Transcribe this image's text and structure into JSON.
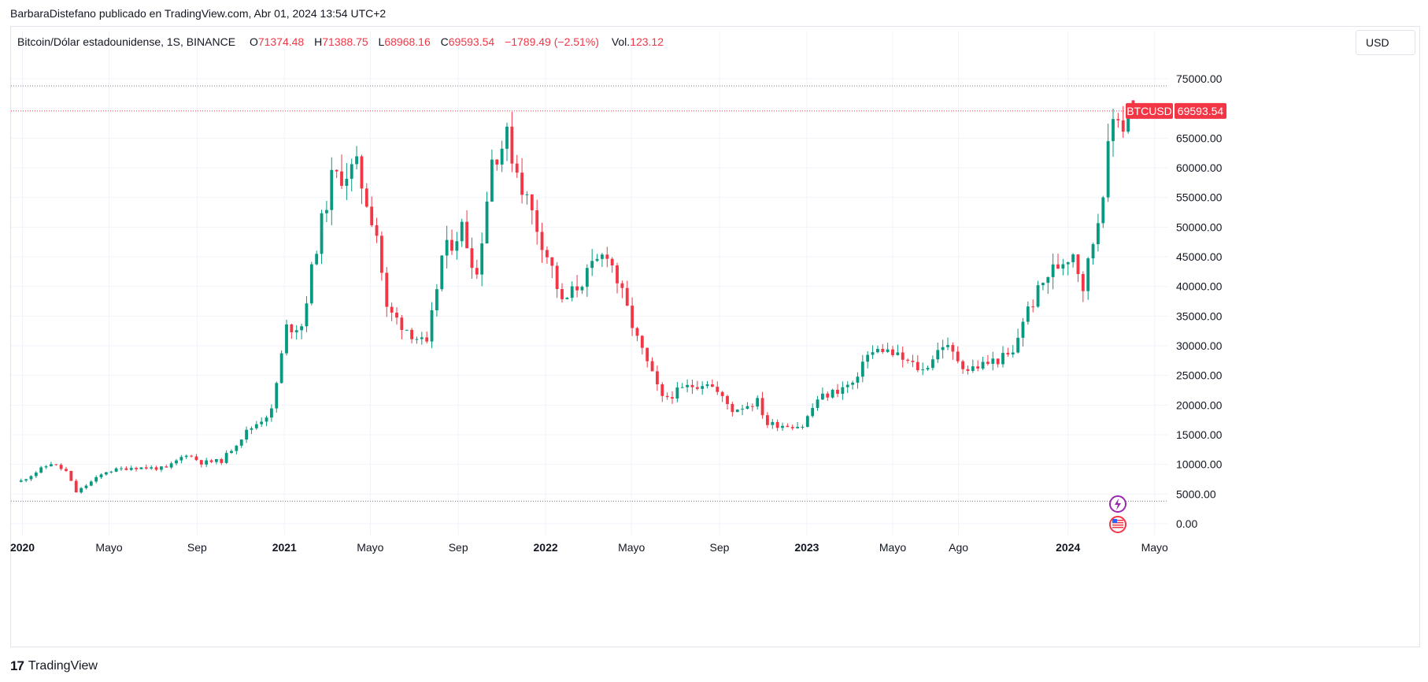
{
  "header": {
    "publisher_line": "BarbaraDistefano publicado en TradingView.com, Abr 01, 2024 13:54 UTC+2"
  },
  "legend": {
    "symbol": "Bitcoin/Dólar estadounidense, 1S, BINANCE",
    "open_label": "O",
    "open": "71374.48",
    "high_label": "H",
    "high": "71388.75",
    "low_label": "L",
    "low": "68968.16",
    "close_label": "C",
    "close": "69593.54",
    "change": "−1789.49 (−2.51%)",
    "volume_label": "Vol.",
    "volume": "123.12"
  },
  "currency_button": "USD",
  "price_tag": {
    "symbol": "BTCUSD",
    "price": "69593.54"
  },
  "footer": {
    "logo_glyph": "17",
    "brand": "TradingView"
  },
  "colors": {
    "up": "#089981",
    "down": "#f23645",
    "grid": "#f0f3fa",
    "dotted": "#787b86"
  },
  "icons": [
    "lightning-event-icon",
    "us-flag-event-icon"
  ],
  "chart_data": {
    "type": "candlestick",
    "title": "",
    "xlabel": "",
    "ylabel": "",
    "interval": "1 week",
    "ylim": [
      -2000,
      79000
    ],
    "y_ticks": [
      0,
      5000,
      10000,
      15000,
      20000,
      25000,
      30000,
      35000,
      40000,
      45000,
      50000,
      55000,
      60000,
      65000,
      70000,
      75000
    ],
    "y_tick_labels": [
      "0.00",
      "5000.00",
      "10000.00",
      "15000.00",
      "20000.00",
      "25000.00",
      "30000.00",
      "35000.00",
      "40000.00",
      "45000.00",
      "50000.00",
      "55000.00",
      "60000.00",
      "65000.00",
      "75000.00"
    ],
    "x_ticks": [
      {
        "date": "2020-01-01",
        "label": "2020",
        "year": true
      },
      {
        "date": "2020-05-01",
        "label": "Mayo",
        "year": false
      },
      {
        "date": "2020-09-01",
        "label": "Sep",
        "year": false
      },
      {
        "date": "2021-01-01",
        "label": "2021",
        "year": true
      },
      {
        "date": "2021-05-01",
        "label": "Mayo",
        "year": false
      },
      {
        "date": "2021-09-01",
        "label": "Sep",
        "year": false
      },
      {
        "date": "2022-01-01",
        "label": "2022",
        "year": true
      },
      {
        "date": "2022-05-01",
        "label": "Mayo",
        "year": false
      },
      {
        "date": "2022-09-01",
        "label": "Sep",
        "year": false
      },
      {
        "date": "2023-01-01",
        "label": "2023",
        "year": true
      },
      {
        "date": "2023-05-01",
        "label": "Mayo",
        "year": false
      },
      {
        "date": "2023-08-01",
        "label": "Ago",
        "year": false
      },
      {
        "date": "2024-01-01",
        "label": "2024",
        "year": true
      },
      {
        "date": "2024-05-01",
        "label": "Mayo",
        "year": false
      }
    ],
    "xlim": [
      "2019-12-16",
      "2024-05-20"
    ],
    "reference_lines": [
      73800,
      3800
    ],
    "last_close": 69593.54,
    "anchor_prices": [
      [
        "2019-12-30",
        7200
      ],
      [
        "2020-02-10",
        10200
      ],
      [
        "2020-03-02",
        8800
      ],
      [
        "2020-03-16",
        5300
      ],
      [
        "2020-04-27",
        8800
      ],
      [
        "2020-06-01",
        9500
      ],
      [
        "2020-07-20",
        9300
      ],
      [
        "2020-08-17",
        11800
      ],
      [
        "2020-09-07",
        10300
      ],
      [
        "2020-10-05",
        10600
      ],
      [
        "2020-11-09",
        15500
      ],
      [
        "2020-12-14",
        19000
      ],
      [
        "2021-01-04",
        33000
      ],
      [
        "2021-01-25",
        33500
      ],
      [
        "2021-02-15",
        47000
      ],
      [
        "2021-03-08",
        58000
      ],
      [
        "2021-04-12",
        60000
      ],
      [
        "2021-05-10",
        49000
      ],
      [
        "2021-05-24",
        36000
      ],
      [
        "2021-07-19",
        29800
      ],
      [
        "2021-08-09",
        45000
      ],
      [
        "2021-09-06",
        50000
      ],
      [
        "2021-09-27",
        42000
      ],
      [
        "2021-10-18",
        61500
      ],
      [
        "2021-11-08",
        65000
      ],
      [
        "2021-11-29",
        57000
      ],
      [
        "2022-01-10",
        43000
      ],
      [
        "2022-01-24",
        37000
      ],
      [
        "2022-03-28",
        46000
      ],
      [
        "2022-05-09",
        31000
      ],
      [
        "2022-06-13",
        21000
      ],
      [
        "2022-07-18",
        23000
      ],
      [
        "2022-08-15",
        24000
      ],
      [
        "2022-09-19",
        19200
      ],
      [
        "2022-10-24",
        20600
      ],
      [
        "2022-11-07",
        16800
      ],
      [
        "2022-12-26",
        16500
      ],
      [
        "2023-01-16",
        21000
      ],
      [
        "2023-03-13",
        24000
      ],
      [
        "2023-03-20",
        28000
      ],
      [
        "2023-04-17",
        29500
      ],
      [
        "2023-06-12",
        25800
      ],
      [
        "2023-07-10",
        30300
      ],
      [
        "2023-08-14",
        26000
      ],
      [
        "2023-10-16",
        28500
      ],
      [
        "2023-10-30",
        34500
      ],
      [
        "2023-12-04",
        42000
      ],
      [
        "2024-01-08",
        46000
      ],
      [
        "2024-01-22",
        40000
      ],
      [
        "2024-02-12",
        51500
      ],
      [
        "2024-03-04",
        68000
      ],
      [
        "2024-03-11",
        69500
      ],
      [
        "2024-03-18",
        67000
      ],
      [
        "2024-03-25",
        71000
      ],
      [
        "2024-04-01",
        69593.54
      ]
    ]
  }
}
